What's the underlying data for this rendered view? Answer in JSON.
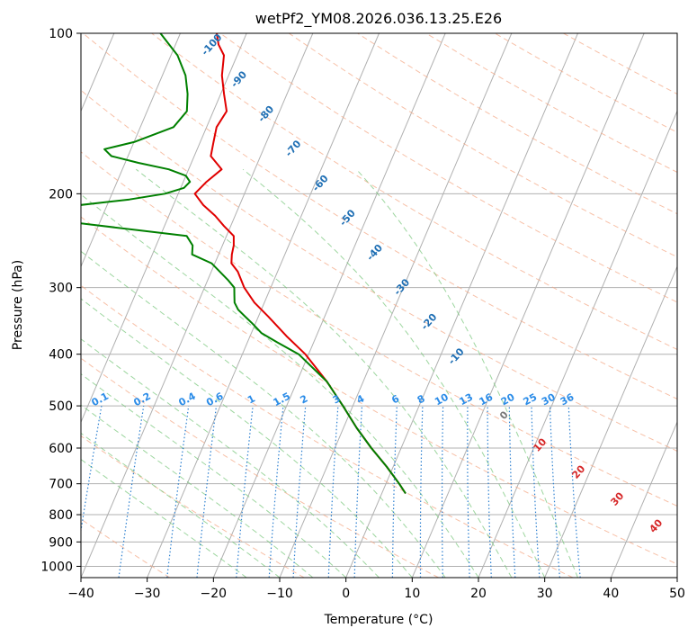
{
  "chart_data": {
    "type": "line",
    "subtype": "skew-t log-p",
    "title": "wetPf2_YM08.2026.036.13.25.E26",
    "xlabel": "Temperature (°C)",
    "ylabel": "Pressure (hPa)",
    "xlim": [
      -40,
      50
    ],
    "ylim": [
      1050,
      100
    ],
    "x_ticks": [
      -40,
      -30,
      -20,
      -10,
      0,
      10,
      20,
      30,
      40,
      50
    ],
    "x_tick_labels": [
      "−40",
      "−30",
      "−20",
      "−10",
      "0",
      "10",
      "20",
      "30",
      "40",
      "50"
    ],
    "y_ticks": [
      100,
      200,
      300,
      400,
      500,
      600,
      700,
      800,
      900,
      1000
    ],
    "y_tick_labels": [
      "100",
      "200",
      "300",
      "400",
      "500",
      "600",
      "700",
      "800",
      "900",
      "1000"
    ],
    "grid": true,
    "skew": 35,
    "isotherm_values": [
      -170,
      -160,
      -150,
      -140,
      -130,
      -120,
      -110,
      -100,
      -90,
      -80,
      -70,
      -60,
      -50,
      -40,
      -30,
      -20,
      -10,
      0,
      10,
      20,
      30,
      40,
      50
    ],
    "dry_adiabat_thetas_c": [
      -30,
      -10,
      10,
      30,
      50,
      70,
      90,
      110,
      130,
      150,
      170,
      190,
      210,
      230,
      250
    ],
    "moist_adiabat_start_temps_c": [
      -15,
      -10,
      -5,
      0,
      5,
      10,
      15,
      20,
      25,
      30,
      35
    ],
    "theta_e_label_values": [
      "-100",
      "-90",
      "-80",
      "-70",
      "-60",
      "-50",
      "-40",
      "-30",
      "-20",
      "-10",
      "0",
      "10",
      "20",
      "30",
      "40"
    ],
    "mixing_ratio_values": [
      0.1,
      0.2,
      0.4,
      0.6,
      1,
      1.5,
      2,
      3,
      4,
      6,
      8,
      10,
      13,
      16,
      20,
      25,
      30,
      36
    ],
    "mixing_ratio_labels": [
      "0.1",
      "0.2",
      "0.4",
      "0.6",
      "1",
      "1.5",
      "2",
      "3",
      "4",
      "6",
      "8",
      "10",
      "13",
      "16",
      "20",
      "25",
      "30",
      "36"
    ],
    "series": [
      {
        "name": "temperature",
        "color": "#e00000",
        "pressure": [
          730,
          700,
          650,
          600,
          550,
          500,
          450,
          400,
          370,
          340,
          320,
          300,
          280,
          270,
          260,
          250,
          240,
          230,
          220,
          210,
          200,
          190,
          180,
          170,
          160,
          150,
          140,
          130,
          120,
          110,
          105,
          100
        ],
        "temperature": [
          3.6,
          2.0,
          -1.0,
          -4.5,
          -8.0,
          -11.5,
          -15.5,
          -20.5,
          -24.5,
          -28.5,
          -31.5,
          -34.0,
          -36.0,
          -37.5,
          -38.0,
          -38.3,
          -38.9,
          -41.0,
          -43.0,
          -45.5,
          -47.5,
          -46.5,
          -45.0,
          -47.5,
          -48.0,
          -48.5,
          -48.0,
          -49.5,
          -51.0,
          -52.0,
          -53.5,
          -54.5
        ]
      },
      {
        "name": "dewpoint",
        "color": "#008000",
        "pressure": [
          730,
          700,
          650,
          600,
          550,
          500,
          450,
          400,
          380,
          365,
          350,
          340,
          330,
          320,
          310,
          300,
          290,
          270,
          260,
          250,
          240,
          225,
          220,
          215,
          205,
          200,
          195,
          190,
          185,
          180,
          175,
          170,
          165,
          160,
          150,
          140,
          130,
          120,
          110,
          100
        ],
        "temperature": [
          3.6,
          2.0,
          -1.0,
          -4.5,
          -8.0,
          -11.5,
          -15.5,
          -21.5,
          -25.5,
          -28.5,
          -30.5,
          -32.0,
          -33.5,
          -34.5,
          -35.0,
          -35.5,
          -37.0,
          -40.5,
          -44.0,
          -44.5,
          -46.0,
          -66.0,
          -72.0,
          -71.0,
          -57.0,
          -52.0,
          -49.5,
          -49.0,
          -50.0,
          -53.0,
          -58.0,
          -62.5,
          -64.0,
          -60.0,
          -55.0,
          -54.0,
          -55.0,
          -56.5,
          -59.0,
          -63.0
        ]
      }
    ]
  }
}
